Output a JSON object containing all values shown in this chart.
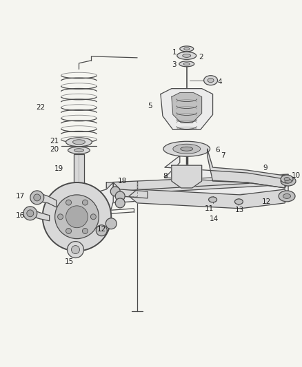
{
  "bg_color": "#f5f5f0",
  "line_color": "#4a4a4a",
  "label_color": "#222222",
  "figsize": [
    4.38,
    5.33
  ],
  "dpi": 100,
  "label_fs": 7.5,
  "lw_main": 0.9,
  "lw_thick": 1.4,
  "lw_thin": 0.6,
  "fill_light": "#d8d8d8",
  "fill_mid": "#c0c0c0",
  "fill_dark": "#aaaaaa",
  "fill_white": "#ebebeb"
}
